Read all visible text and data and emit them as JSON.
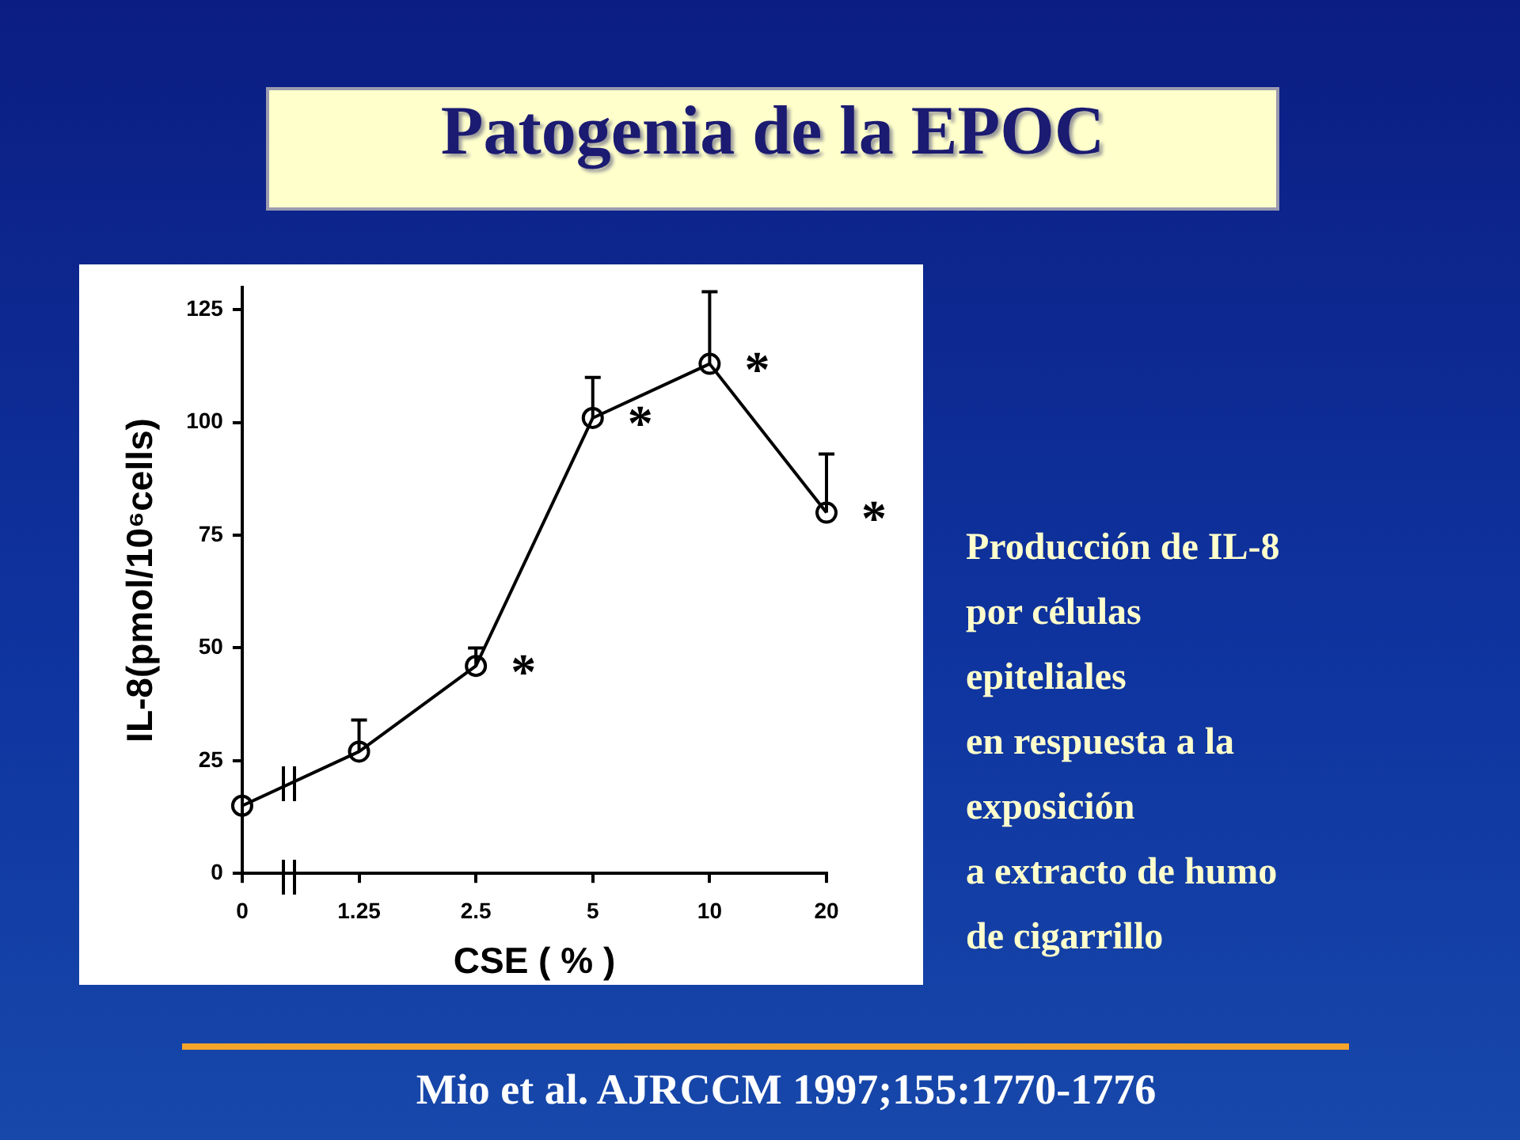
{
  "chart_data": {
    "type": "line",
    "title": "Patogenia de la EPOC",
    "xlabel": "CSE ( % )",
    "ylabel": "IL-8(pmol/10⁶cells)",
    "categories": [
      "0",
      "1.25",
      "2.5",
      "5",
      "10",
      "20"
    ],
    "values": [
      15,
      27,
      46,
      101,
      113,
      80
    ],
    "color": "#000000",
    "errors": [
      null,
      [
        27,
        34
      ],
      [
        46,
        50
      ],
      [
        101,
        110
      ],
      [
        113,
        129
      ],
      [
        80,
        93
      ]
    ],
    "ylim": [
      0,
      130
    ],
    "yticks": [
      0,
      25,
      50,
      75,
      100,
      125
    ],
    "grid": false,
    "legend": false,
    "marker": "circle",
    "annotations": [
      {
        "text": "*",
        "x": "2.5",
        "y": 46
      },
      {
        "text": "*",
        "x": "5",
        "y": 101
      },
      {
        "text": "*",
        "x": "10",
        "y": 113
      },
      {
        "text": "*",
        "x": "20",
        "y": 80
      },
      "Producción de IL-8\npor células\nepiteliales\nen respuesta a la\nexposición\na extracto de humo\nde cigarrillo",
      "Mio et al. AJRCCM 1997;155:1770-1776"
    ]
  }
}
